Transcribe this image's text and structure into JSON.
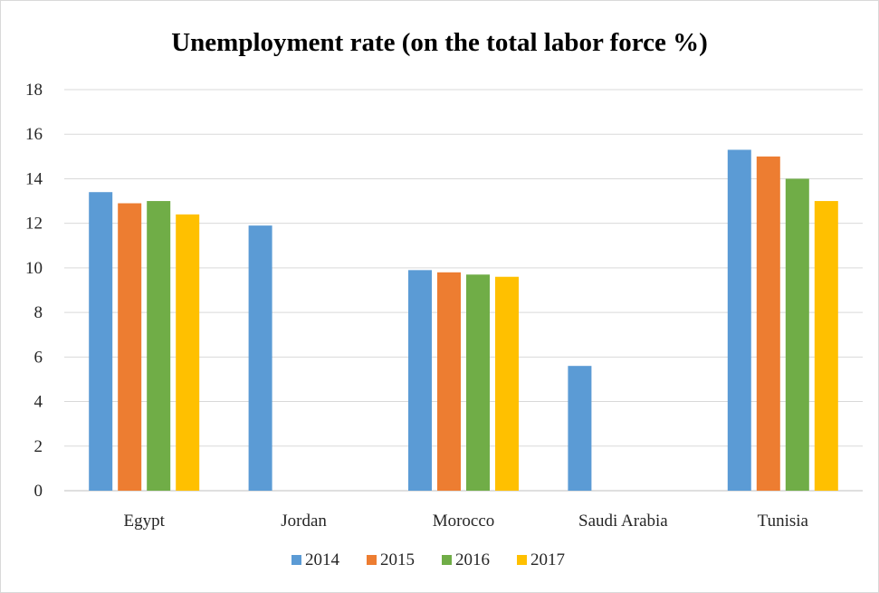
{
  "chart_data": {
    "type": "bar",
    "title": "Unemployment rate (on the total labor force %)",
    "xlabel": "",
    "ylabel": "",
    "categories": [
      "Egypt",
      "Jordan",
      "Morocco",
      "Saudi Arabia",
      "Tunisia"
    ],
    "ylim": [
      0,
      18
    ],
    "yticks": [
      0,
      2,
      4,
      6,
      8,
      10,
      12,
      14,
      16,
      18
    ],
    "grid": true,
    "legend": "bottom",
    "series": [
      {
        "name": "2014",
        "color": "#5b9bd5",
        "values": [
          13.4,
          11.9,
          9.9,
          5.6,
          15.3
        ]
      },
      {
        "name": "2015",
        "color": "#ed7d31",
        "values": [
          12.9,
          null,
          9.8,
          null,
          15.0
        ]
      },
      {
        "name": "2016",
        "color": "#70ad47",
        "values": [
          13.0,
          null,
          9.7,
          null,
          14.0
        ]
      },
      {
        "name": "2017",
        "color": "#ffc000",
        "values": [
          12.4,
          null,
          9.6,
          null,
          13.0
        ]
      }
    ]
  }
}
